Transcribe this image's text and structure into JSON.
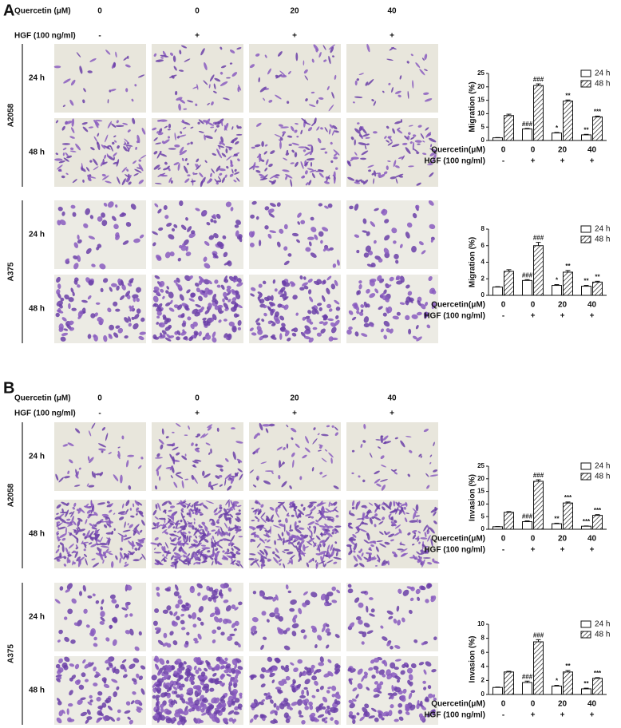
{
  "figure_panels": [
    {
      "label": "A",
      "quercetin_label": "Quercetin (μM)",
      "quercetin_doses": [
        "0",
        "0",
        "20",
        "40"
      ],
      "hgf_label": "HGF (100 ng/ml)",
      "hgf_doses": [
        "-",
        "+",
        "+",
        "+"
      ],
      "cell_lines": [
        {
          "name": "A2058",
          "times": [
            "24 h",
            "48 h"
          ]
        },
        {
          "name": "A375",
          "times": [
            "24 h",
            "48 h"
          ]
        }
      ]
    },
    {
      "label": "B",
      "quercetin_label": "Quercetin (μM)",
      "quercetin_doses": [
        "0",
        "0",
        "20",
        "40"
      ],
      "hgf_label": "HGF (100 ng/ml)",
      "hgf_doses": [
        "-",
        "+",
        "+",
        "+"
      ],
      "cell_lines": [
        {
          "name": "A2058",
          "times": [
            "24 h",
            "48 h"
          ]
        },
        {
          "name": "A375",
          "times": [
            "24 h",
            "48 h"
          ]
        }
      ]
    }
  ],
  "chart_data": [
    {
      "type": "bar",
      "y_label": "Migration (%)",
      "categories": [
        "0",
        "0",
        "20",
        "40"
      ],
      "category_label": "Quercetin(μM)",
      "categories2": [
        "-",
        "+",
        "+",
        "+"
      ],
      "category2_label": "HGF (100 ng/ml)",
      "ylim": [
        0,
        25
      ],
      "yticks": [
        0,
        5,
        10,
        15,
        20,
        25
      ],
      "legend": "upper right",
      "series": [
        {
          "name": "24 h",
          "color": "#ffffff",
          "values": [
            1.0,
            4.3,
            2.8,
            2.1
          ],
          "errors": [
            0.1,
            0.2,
            0.2,
            0.2
          ],
          "annotations": [
            null,
            "###",
            "*",
            "**"
          ]
        },
        {
          "name": "48 h",
          "color": "#ffffff",
          "hatch": true,
          "values": [
            9.3,
            20.5,
            14.7,
            8.8
          ],
          "errors": [
            0.5,
            0.6,
            0.4,
            0.3
          ],
          "annotations": [
            null,
            "###",
            "**",
            "***"
          ]
        }
      ]
    },
    {
      "type": "bar",
      "y_label": "Migration (%)",
      "categories": [
        "0",
        "0",
        "20",
        "40"
      ],
      "category_label": "Quercetin(μM)",
      "categories2": [
        "-",
        "+",
        "+",
        "+"
      ],
      "category2_label": "HGF (100 ng/ml)",
      "ylim": [
        0,
        8
      ],
      "yticks": [
        0,
        2,
        4,
        6,
        8
      ],
      "legend": "upper right",
      "series": [
        {
          "name": "24 h",
          "color": "#ffffff",
          "values": [
            1.0,
            1.8,
            1.2,
            1.1
          ],
          "errors": [
            0.05,
            0.1,
            0.1,
            0.1
          ],
          "annotations": [
            null,
            "###",
            "*",
            "**"
          ]
        },
        {
          "name": "48 h",
          "color": "#ffffff",
          "hatch": true,
          "values": [
            2.9,
            6.0,
            2.8,
            1.6
          ],
          "errors": [
            0.2,
            0.4,
            0.2,
            0.1
          ],
          "annotations": [
            null,
            "###",
            "**",
            "**"
          ]
        }
      ]
    },
    {
      "type": "bar",
      "y_label": "Invasion (%)",
      "categories": [
        "0",
        "0",
        "20",
        "40"
      ],
      "category_label": "Quercetin(μM)",
      "categories2": [
        "-",
        "+",
        "+",
        "+"
      ],
      "category2_label": "HGF (100 ng/ml)",
      "ylim": [
        0,
        25
      ],
      "yticks": [
        0,
        5,
        10,
        15,
        20,
        25
      ],
      "legend": "upper right",
      "series": [
        {
          "name": "24 h",
          "color": "#ffffff",
          "values": [
            1.0,
            3.0,
            2.2,
            1.2
          ],
          "errors": [
            0.1,
            0.3,
            0.2,
            0.1
          ],
          "annotations": [
            null,
            "###",
            "**",
            "***"
          ]
        },
        {
          "name": "48 h",
          "color": "#ffffff",
          "hatch": true,
          "values": [
            6.7,
            19.0,
            10.4,
            5.5
          ],
          "errors": [
            0.3,
            0.6,
            0.4,
            0.3
          ],
          "annotations": [
            null,
            "###",
            "***",
            "***"
          ]
        }
      ]
    },
    {
      "type": "bar",
      "y_label": "Invasion (%)",
      "categories": [
        "0",
        "0",
        "20",
        "40"
      ],
      "category_label": "Quercetin(μM)",
      "categories2": [
        "-",
        "+",
        "+",
        "+"
      ],
      "category2_label": "HGF (100 ng/ml)",
      "ylim": [
        0,
        10
      ],
      "yticks": [
        0,
        2,
        4,
        6,
        8,
        10
      ],
      "legend": "upper right",
      "series": [
        {
          "name": "24 h",
          "color": "#ffffff",
          "values": [
            1.0,
            1.7,
            1.2,
            0.8
          ],
          "errors": [
            0.05,
            0.2,
            0.1,
            0.1
          ],
          "annotations": [
            null,
            "###",
            "*",
            "**"
          ]
        },
        {
          "name": "48 h",
          "color": "#ffffff",
          "hatch": true,
          "values": [
            3.2,
            7.5,
            3.2,
            2.3
          ],
          "errors": [
            0.1,
            0.3,
            0.2,
            0.1
          ],
          "annotations": [
            null,
            "###",
            "**",
            "***"
          ]
        }
      ]
    }
  ]
}
